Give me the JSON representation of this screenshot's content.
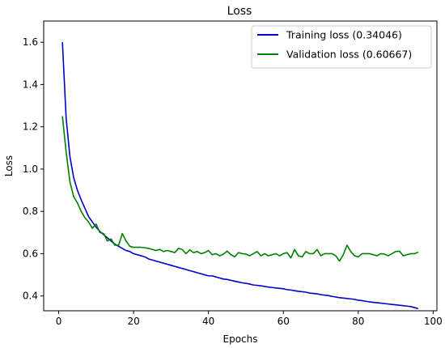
{
  "chart_data": {
    "type": "line",
    "title": "Loss",
    "xlabel": "Epochs",
    "ylabel": "Loss",
    "xlim": [
      -4,
      101
    ],
    "ylim": [
      0.33,
      1.7
    ],
    "xticks": [
      0,
      20,
      40,
      60,
      80,
      100
    ],
    "yticks": [
      0.4,
      0.6,
      0.8,
      1.0,
      1.2,
      1.4,
      1.6
    ],
    "ytick_labels": [
      "0.4",
      "0.6",
      "0.8",
      "1.0",
      "1.2",
      "1.4",
      "1.6"
    ],
    "grid": false,
    "legend_position": "top-right",
    "series": [
      {
        "name": "Training loss (0.34046)",
        "color": "#0000cc",
        "x": [
          1,
          2,
          3,
          4,
          5,
          6,
          7,
          8,
          9,
          10,
          11,
          12,
          13,
          14,
          15,
          16,
          17,
          18,
          19,
          20,
          21,
          22,
          23,
          24,
          25,
          26,
          27,
          28,
          29,
          30,
          31,
          32,
          33,
          34,
          35,
          36,
          37,
          38,
          39,
          40,
          41,
          42,
          43,
          44,
          45,
          46,
          47,
          48,
          49,
          50,
          51,
          52,
          53,
          54,
          55,
          56,
          57,
          58,
          59,
          60,
          61,
          62,
          63,
          64,
          65,
          66,
          67,
          68,
          69,
          70,
          71,
          72,
          73,
          74,
          75,
          76,
          77,
          78,
          79,
          80,
          81,
          82,
          83,
          84,
          85,
          86,
          87,
          88,
          89,
          90,
          91,
          92,
          93,
          94,
          95,
          96
        ],
        "y": [
          1.6,
          1.24,
          1.06,
          0.96,
          0.9,
          0.855,
          0.815,
          0.775,
          0.75,
          0.725,
          0.705,
          0.69,
          0.675,
          0.66,
          0.645,
          0.635,
          0.625,
          0.615,
          0.61,
          0.6,
          0.595,
          0.59,
          0.585,
          0.575,
          0.57,
          0.565,
          0.56,
          0.555,
          0.55,
          0.545,
          0.54,
          0.535,
          0.53,
          0.525,
          0.52,
          0.515,
          0.51,
          0.505,
          0.5,
          0.495,
          0.495,
          0.49,
          0.485,
          0.48,
          0.478,
          0.474,
          0.47,
          0.466,
          0.462,
          0.46,
          0.456,
          0.452,
          0.45,
          0.448,
          0.445,
          0.442,
          0.44,
          0.438,
          0.436,
          0.434,
          0.43,
          0.428,
          0.425,
          0.422,
          0.42,
          0.418,
          0.414,
          0.412,
          0.41,
          0.406,
          0.404,
          0.402,
          0.398,
          0.395,
          0.392,
          0.39,
          0.388,
          0.386,
          0.384,
          0.38,
          0.378,
          0.375,
          0.372,
          0.37,
          0.368,
          0.366,
          0.364,
          0.362,
          0.36,
          0.358,
          0.356,
          0.354,
          0.352,
          0.35,
          0.345,
          0.34
        ]
      },
      {
        "name": "Validation loss (0.60667)",
        "color": "#008000",
        "x": [
          1,
          2,
          3,
          4,
          5,
          6,
          7,
          8,
          9,
          10,
          11,
          12,
          13,
          14,
          15,
          16,
          17,
          18,
          19,
          20,
          21,
          22,
          23,
          24,
          25,
          26,
          27,
          28,
          29,
          30,
          31,
          32,
          33,
          34,
          35,
          36,
          37,
          38,
          39,
          40,
          41,
          42,
          43,
          44,
          45,
          46,
          47,
          48,
          49,
          50,
          51,
          52,
          53,
          54,
          55,
          56,
          57,
          58,
          59,
          60,
          61,
          62,
          63,
          64,
          65,
          66,
          67,
          68,
          69,
          70,
          71,
          72,
          73,
          74,
          75,
          76,
          77,
          78,
          79,
          80,
          81,
          82,
          83,
          84,
          85,
          86,
          87,
          88,
          89,
          90,
          91,
          92,
          93,
          94,
          95,
          96
        ],
        "y": [
          1.25,
          1.08,
          0.94,
          0.87,
          0.84,
          0.8,
          0.77,
          0.75,
          0.72,
          0.74,
          0.7,
          0.695,
          0.66,
          0.67,
          0.64,
          0.64,
          0.695,
          0.66,
          0.635,
          0.63,
          0.63,
          0.63,
          0.628,
          0.625,
          0.62,
          0.615,
          0.62,
          0.61,
          0.615,
          0.61,
          0.605,
          0.625,
          0.62,
          0.6,
          0.618,
          0.605,
          0.61,
          0.6,
          0.605,
          0.615,
          0.595,
          0.6,
          0.59,
          0.598,
          0.612,
          0.595,
          0.585,
          0.605,
          0.6,
          0.598,
          0.59,
          0.6,
          0.61,
          0.59,
          0.6,
          0.59,
          0.595,
          0.6,
          0.59,
          0.6,
          0.605,
          0.58,
          0.62,
          0.59,
          0.585,
          0.61,
          0.6,
          0.6,
          0.62,
          0.59,
          0.6,
          0.6,
          0.6,
          0.59,
          0.565,
          0.595,
          0.64,
          0.61,
          0.59,
          0.585,
          0.6,
          0.6,
          0.6,
          0.595,
          0.59,
          0.6,
          0.598,
          0.59,
          0.6,
          0.61,
          0.612,
          0.59,
          0.595,
          0.6,
          0.6,
          0.607
        ]
      }
    ]
  }
}
